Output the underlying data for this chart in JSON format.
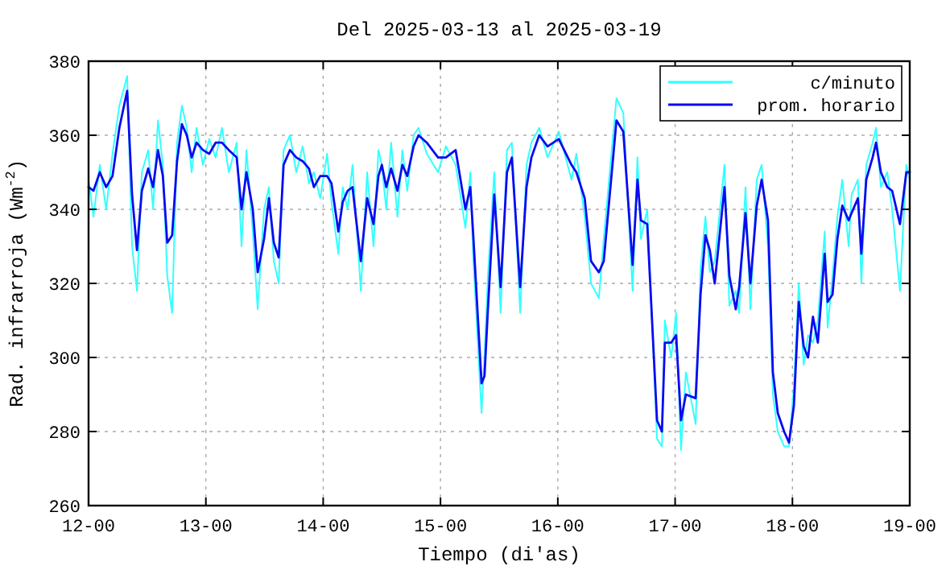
{
  "chart_data": {
    "type": "line",
    "title": "Del 2025-03-13 al 2025-03-19",
    "xlabel": "Tiempo (di'as)",
    "ylabel": "Rad. infrarroja (Wm$^{-2}$)",
    "x": [
      "2025-03-12T00:00",
      "2025-03-12T01:00",
      "2025-03-12T02:18",
      "2025-03-12T03:36",
      "2025-03-12T04:54",
      "2025-03-12T06:18",
      "2025-03-12T07:54",
      "2025-03-12T08:54",
      "2025-03-12T09:54",
      "2025-03-12T10:54",
      "2025-03-12T12:12",
      "2025-03-12T13:12",
      "2025-03-12T14:12",
      "2025-03-12T15:12",
      "2025-03-12T16:06",
      "2025-03-12T17:06",
      "2025-03-12T18:06",
      "2025-03-12T19:06",
      "2025-03-12T20:06",
      "2025-03-12T21:06",
      "2025-03-12T22:06",
      "2025-03-12T23:24",
      "2025-03-13T00:42",
      "2025-03-13T02:00",
      "2025-03-13T03:18",
      "2025-03-13T04:42",
      "2025-03-13T06:18",
      "2025-03-13T07:18",
      "2025-03-13T08:18",
      "2025-03-13T09:36",
      "2025-03-13T10:36",
      "2025-03-13T11:54",
      "2025-03-13T12:54",
      "2025-03-13T13:54",
      "2025-03-13T14:54",
      "2025-03-13T15:54",
      "2025-03-13T17:12",
      "2025-03-13T18:30",
      "2025-03-13T19:48",
      "2025-03-13T21:06",
      "2025-03-13T22:06",
      "2025-03-13T23:24",
      "2025-03-14T00:48",
      "2025-03-14T01:42",
      "2025-03-14T03:06",
      "2025-03-14T04:00",
      "2025-03-14T05:00",
      "2025-03-14T06:00",
      "2025-03-14T07:42",
      "2025-03-14T09:00",
      "2025-03-14T10:18",
      "2025-03-14T11:18",
      "2025-03-14T12:00",
      "2025-03-14T12:54",
      "2025-03-14T13:54",
      "2025-03-14T15:12",
      "2025-03-14T16:12",
      "2025-03-14T17:12",
      "2025-03-14T18:30",
      "2025-03-14T19:30",
      "2025-03-14T21:12",
      "2025-03-14T23:30",
      "2025-03-15T01:06",
      "2025-03-15T03:06",
      "2025-03-15T05:06",
      "2025-03-15T06:06",
      "2025-03-15T06:42",
      "2025-03-15T08:24",
      "2025-03-15T09:00",
      "2025-03-15T09:42",
      "2025-03-15T11:00",
      "2025-03-15T12:18",
      "2025-03-15T13:36",
      "2025-03-15T14:36",
      "2025-03-15T16:18",
      "2025-03-15T17:36",
      "2025-03-15T18:36",
      "2025-03-15T20:12",
      "2025-03-15T21:54",
      "2025-03-16T00:12",
      "2025-03-16T02:48",
      "2025-03-16T03:48",
      "2025-03-16T05:30",
      "2025-03-16T06:48",
      "2025-03-16T08:24",
      "2025-03-16T09:24",
      "2025-03-16T12:00",
      "2025-03-16T13:24",
      "2025-03-16T15:18",
      "2025-03-16T16:18",
      "2025-03-16T17:00",
      "2025-03-16T18:18",
      "2025-03-16T20:18",
      "2025-03-16T21:18",
      "2025-03-16T21:54",
      "2025-03-16T23:12",
      "2025-03-17T00:12",
      "2025-03-17T01:12",
      "2025-03-17T02:12",
      "2025-03-17T04:12",
      "2025-03-17T05:12",
      "2025-03-17T06:12",
      "2025-03-17T07:06",
      "2025-03-17T08:06",
      "2025-03-17T10:06",
      "2025-03-17T11:06",
      "2025-03-17T12:24",
      "2025-03-17T13:06",
      "2025-03-17T14:24",
      "2025-03-17T15:24",
      "2025-03-17T16:42",
      "2025-03-17T17:42",
      "2025-03-17T19:00",
      "2025-03-17T20:00",
      "2025-03-17T21:00",
      "2025-03-17T22:18",
      "2025-03-17T23:18",
      "2025-03-18T00:18",
      "2025-03-18T01:18",
      "2025-03-18T02:18",
      "2025-03-18T03:12",
      "2025-03-18T04:12",
      "2025-03-18T05:12",
      "2025-03-18T06:36",
      "2025-03-18T07:12",
      "2025-03-18T08:12",
      "2025-03-18T09:12",
      "2025-03-18T10:12",
      "2025-03-18T11:30",
      "2025-03-18T12:06",
      "2025-03-18T13:24",
      "2025-03-18T14:06",
      "2025-03-18T15:06",
      "2025-03-18T16:24",
      "2025-03-18T17:06",
      "2025-03-18T18:06",
      "2025-03-18T19:24",
      "2025-03-18T20:24",
      "2025-03-18T22:00",
      "2025-03-18T23:18",
      "2025-03-19T00:00"
    ],
    "series": [
      {
        "name": "c/minuto",
        "color": "#33ffff",
        "values": [
          348,
          338,
          352,
          340,
          355,
          368,
          376,
          330,
          318,
          350,
          356,
          340,
          364,
          352,
          322,
          312,
          358,
          368,
          362,
          350,
          362,
          352,
          359,
          354,
          362,
          350,
          358,
          330,
          356,
          334,
          313,
          340,
          346,
          326,
          320,
          356,
          360,
          350,
          357,
          347,
          350,
          343,
          355,
          342,
          328,
          346,
          340,
          352,
          318,
          350,
          330,
          356,
          352,
          340,
          358,
          338,
          356,
          345,
          360,
          362,
          355,
          350,
          357,
          352,
          335,
          350,
          327,
          285,
          300,
          322,
          350,
          312,
          356,
          358,
          312,
          352,
          358,
          362,
          354,
          361,
          348,
          355,
          338,
          320,
          316,
          332,
          370,
          366,
          318,
          354,
          332,
          340,
          278,
          276,
          310,
          300,
          312,
          275,
          296,
          282,
          324,
          338,
          323,
          326,
          352,
          314,
          318,
          312,
          346,
          313,
          348,
          352,
          330,
          290,
          280,
          276,
          276,
          292,
          320,
          298,
          306,
          304,
          310,
          334,
          308,
          322,
          338,
          348,
          330,
          344,
          348,
          320,
          352,
          358,
          362,
          346,
          350,
          340,
          318,
          352,
          348
        ]
      },
      {
        "name": "prom. horario",
        "color": "#0a0af0",
        "values": [
          346,
          345,
          350,
          346,
          349,
          362,
          372,
          344,
          329,
          345,
          351,
          346,
          356,
          349,
          331,
          333,
          353,
          363,
          360,
          354,
          358,
          356,
          355,
          358,
          358,
          356,
          354,
          340,
          350,
          340,
          323,
          332,
          343,
          331,
          327,
          352,
          356,
          354,
          353,
          351,
          346,
          349,
          349,
          347,
          334,
          342,
          345,
          346,
          326,
          343,
          336,
          349,
          352,
          346,
          351,
          345,
          352,
          349,
          357,
          360,
          358,
          354,
          354,
          356,
          340,
          346,
          333,
          293,
          295,
          313,
          344,
          319,
          350,
          354,
          319,
          346,
          354,
          360,
          357,
          359,
          352,
          350,
          343,
          326,
          323,
          326,
          364,
          361,
          325,
          348,
          337,
          336,
          283,
          280,
          304,
          304,
          306,
          283,
          290,
          289,
          317,
          333,
          329,
          320,
          346,
          322,
          313,
          319,
          339,
          320,
          341,
          348,
          337,
          296,
          285,
          280,
          277,
          287,
          315,
          303,
          300,
          311,
          304,
          328,
          315,
          317,
          332,
          341,
          337,
          339,
          343,
          328,
          348,
          354,
          358,
          350,
          346,
          345,
          336,
          350,
          350
        ]
      }
    ],
    "xlim": [
      "2025-03-12T00:00",
      "2025-03-19T00:00"
    ],
    "xticks": [
      {
        "value": "2025-03-12T00:00",
        "label": "12-00"
      },
      {
        "value": "2025-03-13T00:00",
        "label": "13-00"
      },
      {
        "value": "2025-03-14T00:00",
        "label": "14-00"
      },
      {
        "value": "2025-03-15T00:00",
        "label": "15-00"
      },
      {
        "value": "2025-03-16T00:00",
        "label": "16-00"
      },
      {
        "value": "2025-03-17T00:00",
        "label": "17-00"
      },
      {
        "value": "2025-03-18T00:00",
        "label": "18-00"
      },
      {
        "value": "2025-03-19T00:00",
        "label": "19-00"
      }
    ],
    "ylim": [
      260,
      380
    ],
    "yticks": [
      260,
      280,
      300,
      320,
      340,
      360,
      380
    ],
    "grid": true,
    "legend": "top right"
  }
}
